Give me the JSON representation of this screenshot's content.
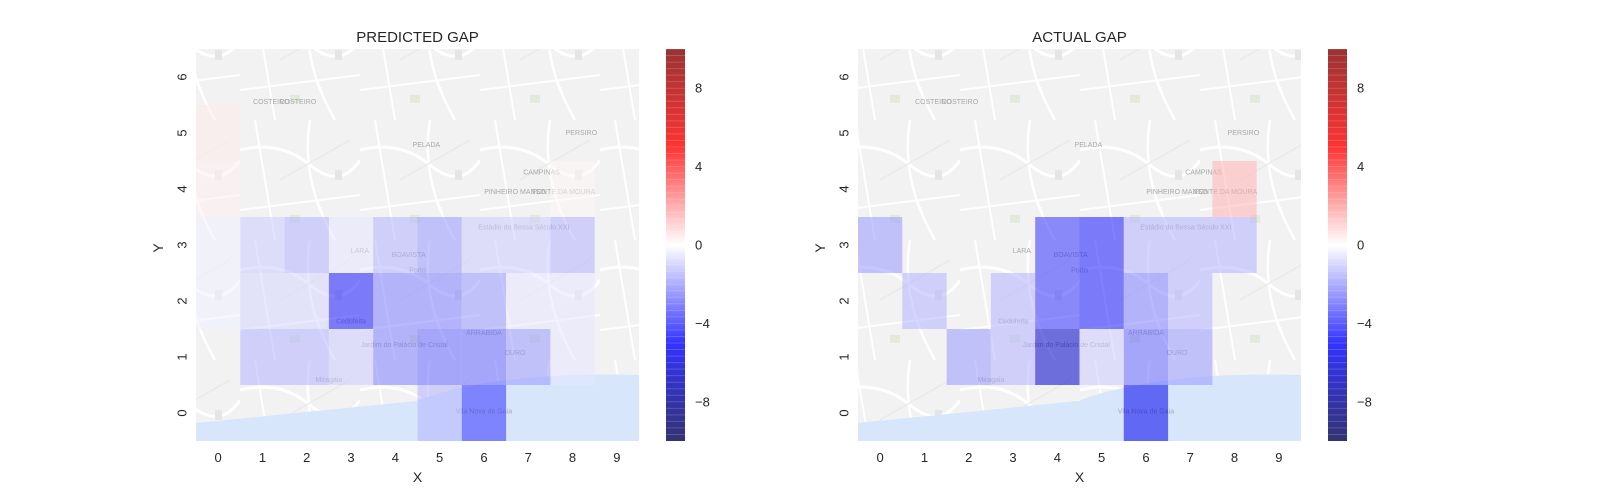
{
  "chart_data": [
    {
      "type": "heatmap",
      "title": "PREDICTED GAP",
      "xlabel": "X",
      "ylabel": "Y",
      "x_ticks": [
        "0",
        "1",
        "2",
        "3",
        "4",
        "5",
        "6",
        "7",
        "8",
        "9"
      ],
      "y_ticks": [
        "0",
        "1",
        "2",
        "3",
        "4",
        "5",
        "6"
      ],
      "colorbar": {
        "colormap": "seismic",
        "vmin": -10,
        "vmax": 10,
        "ticks": [
          "8",
          "4",
          "0",
          "−4",
          "−8"
        ],
        "tick_values": [
          8,
          4,
          0,
          -4,
          -8
        ]
      },
      "values": [
        [
          0,
          0,
          0,
          0,
          0,
          -1.5,
          -4,
          0,
          0,
          0
        ],
        [
          0,
          -1.5,
          -1.5,
          -1,
          -2.5,
          -3,
          -3,
          -2,
          -0.5,
          0
        ],
        [
          -0.3,
          -0.8,
          -0.8,
          -4.5,
          -2.5,
          -2.5,
          -2,
          -0.5,
          -0.5,
          0
        ],
        [
          -0.3,
          -1,
          -1.5,
          -0.5,
          -1.5,
          -2,
          -1,
          -1,
          -1.5,
          0
        ],
        [
          0.3,
          0,
          0,
          0,
          0,
          0,
          0,
          0,
          0.2,
          0
        ],
        [
          0.4,
          0,
          0,
          0,
          0,
          0,
          0,
          0,
          0,
          0
        ],
        [
          0,
          0,
          0,
          0,
          0,
          0,
          0,
          0,
          0,
          0
        ]
      ]
    },
    {
      "type": "heatmap",
      "title": "ACTUAL GAP",
      "xlabel": "X",
      "ylabel": "Y",
      "x_ticks": [
        "0",
        "1",
        "2",
        "3",
        "4",
        "5",
        "6",
        "7",
        "8",
        "9"
      ],
      "y_ticks": [
        "0",
        "1",
        "2",
        "3",
        "4",
        "5",
        "6"
      ],
      "colorbar": {
        "colormap": "seismic",
        "vmin": -10,
        "vmax": 10,
        "ticks": [
          "8",
          "4",
          "0",
          "−4",
          "−8"
        ],
        "tick_values": [
          8,
          4,
          0,
          -4,
          -8
        ]
      },
      "values": [
        [
          0,
          0,
          0,
          0,
          0,
          0,
          -5.5,
          0,
          0,
          0
        ],
        [
          0,
          0,
          -2,
          -1.5,
          -6.5,
          -1,
          -3,
          -2,
          0,
          0
        ],
        [
          0,
          -1.5,
          0,
          -1.5,
          -4,
          -4.5,
          -2.5,
          -1.5,
          0,
          0
        ],
        [
          -2,
          0,
          0,
          0,
          -4,
          -4.5,
          -1.5,
          -1.5,
          -1.5,
          0
        ],
        [
          0,
          0,
          0,
          0,
          0,
          0,
          0,
          0,
          1.5,
          0
        ],
        [
          0,
          0,
          0,
          0,
          0,
          0,
          0,
          0,
          0,
          0
        ],
        [
          0,
          0,
          0,
          0,
          0,
          0,
          0,
          0,
          0,
          0
        ]
      ]
    }
  ],
  "map_labels": [
    "COSTEIRO",
    "PELADA",
    "CAMPINAS",
    "PINHEIRO MANSO",
    "FONTE DA MOURA",
    "LARA",
    "BOAVISTA",
    "Porto",
    "ARRABIDA",
    "OURO",
    "Jardim do Palácio de Cristal",
    "Cedofeita",
    "Miragaia",
    "Vila Nova de Gaia",
    "Estádio do Bessa Século XXI",
    "PERSIRO",
    "COSTEIRO"
  ]
}
